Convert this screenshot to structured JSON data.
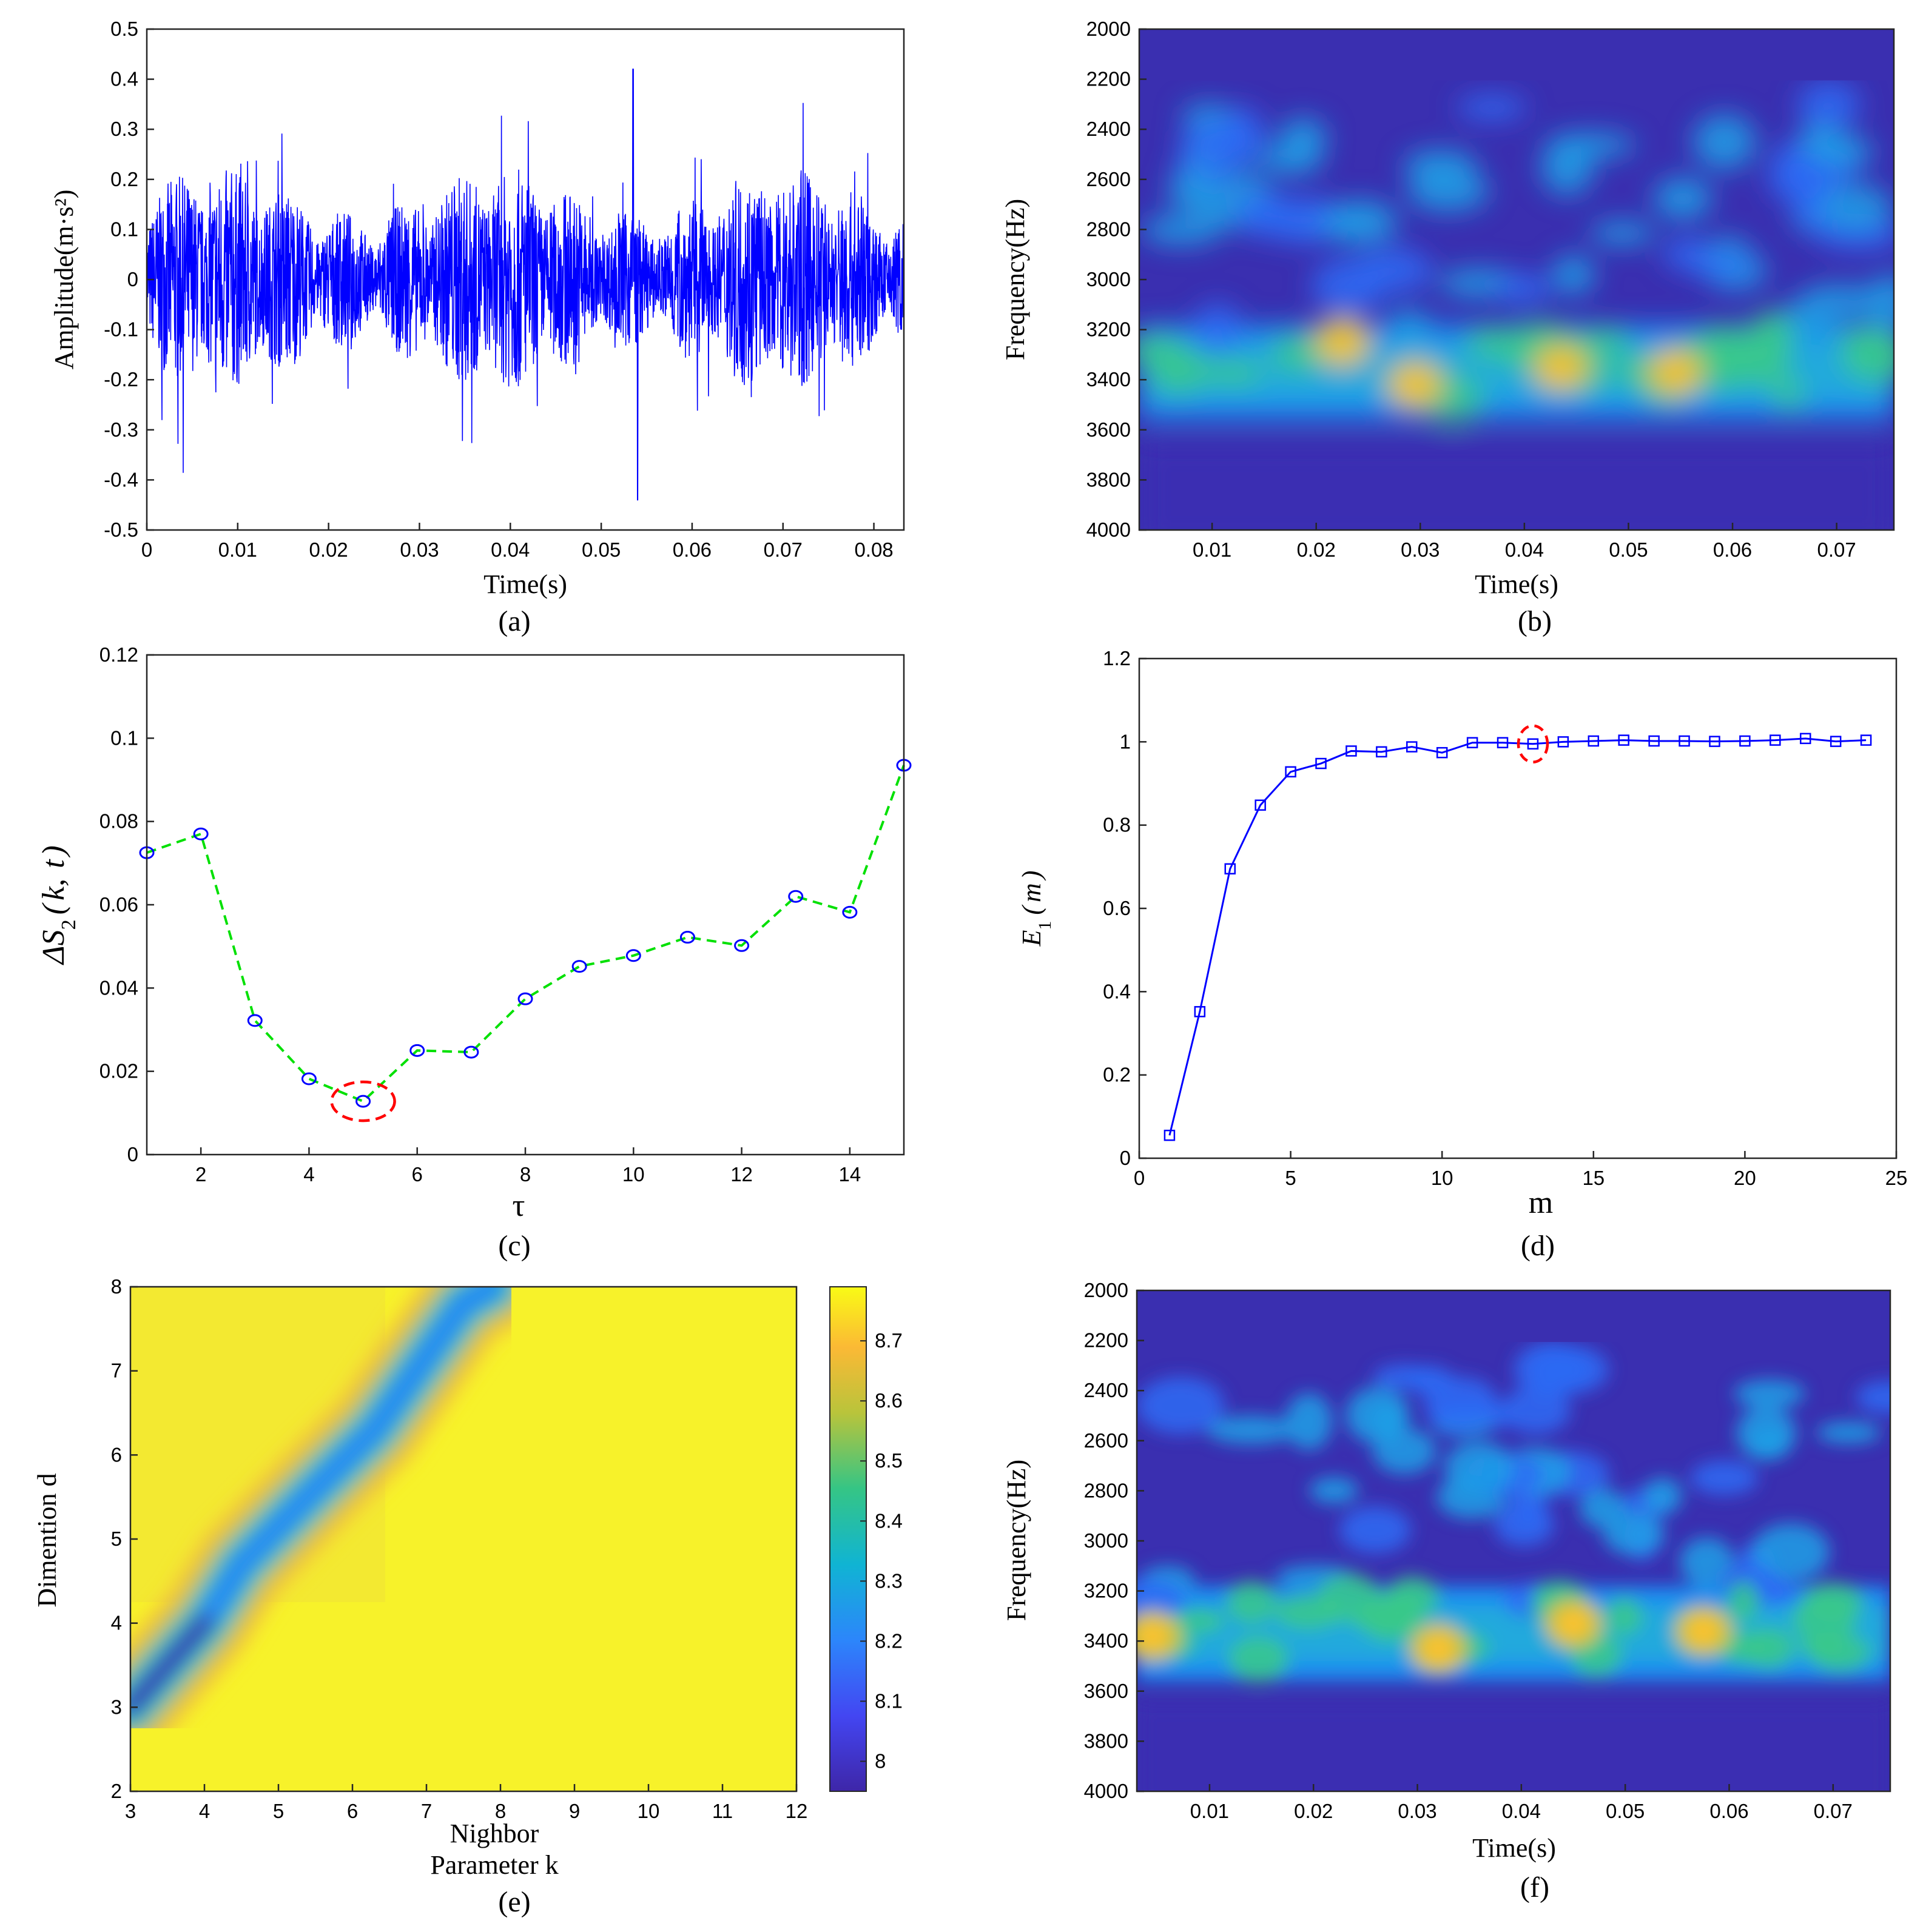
{
  "chart_data": [
    {
      "panel": "(a)",
      "type": "line",
      "xlabel": "Time(s)",
      "ylabel": "Amplitude(m·s²)",
      "xlim": [
        0,
        0.0833
      ],
      "ylim": [
        -0.5,
        0.5
      ],
      "xticks": [
        0,
        0.01,
        0.02,
        0.03,
        0.04,
        0.05,
        0.06,
        0.07,
        0.08
      ],
      "yticks": [
        -0.5,
        -0.4,
        -0.3,
        -0.2,
        -0.1,
        0,
        0.1,
        0.2,
        0.3,
        0.4,
        0.5
      ],
      "peaks": {
        "max": 0.42,
        "max_at": 0.0535,
        "min": -0.44,
        "min_at": 0.054
      },
      "color": "#0000ff"
    },
    {
      "panel": "(b)",
      "type": "heatmap",
      "xlabel": "Time(s)",
      "ylabel": "Frequency(Hz)",
      "xlim": [
        0.003,
        0.0755
      ],
      "ylim": [
        2000,
        4000
      ],
      "xticks": [
        0.01,
        0.02,
        0.03,
        0.04,
        0.05,
        0.06,
        0.07
      ],
      "yticks": [
        2000,
        2200,
        2400,
        2600,
        2800,
        3000,
        3200,
        3400,
        3600,
        3800,
        4000
      ],
      "band_center_hz": 3350,
      "hotspots": [
        {
          "t": 0.0295,
          "f": 3420
        },
        {
          "t": 0.0435,
          "f": 3350
        },
        {
          "t": 0.0545,
          "f": 3370
        },
        {
          "t": 0.0225,
          "f": 3250
        }
      ]
    },
    {
      "panel": "(c)",
      "type": "line",
      "xlabel": "τ",
      "ylabel": "ΔS₂(k,t)",
      "xlim": [
        1,
        15
      ],
      "ylim": [
        0,
        0.12
      ],
      "xticks": [
        2,
        4,
        6,
        8,
        10,
        12,
        14
      ],
      "yticks": [
        0,
        0.02,
        0.04,
        0.06,
        0.08,
        0.1,
        0.12
      ],
      "x": [
        1,
        2,
        3,
        4,
        5,
        6,
        7,
        8,
        9,
        10,
        11,
        12,
        13,
        14,
        15
      ],
      "y": [
        0.0725,
        0.077,
        0.0322,
        0.0182,
        0.0128,
        0.025,
        0.0246,
        0.0374,
        0.0452,
        0.0478,
        0.0522,
        0.0502,
        0.062,
        0.0582,
        0.0935
      ],
      "marked_x": 5,
      "line_color": "#00e000",
      "marker_color": "#0000ff",
      "mark_color": "#ff0000"
    },
    {
      "panel": "(d)",
      "type": "line",
      "xlabel": "m",
      "ylabel": "E₁(m)",
      "xlim": [
        0,
        25
      ],
      "ylim": [
        0,
        1.2
      ],
      "xticks": [
        0,
        5,
        10,
        15,
        20,
        25
      ],
      "yticks": [
        0,
        0.2,
        0.4,
        0.6,
        0.8,
        1,
        1.2
      ],
      "x": [
        1,
        2,
        3,
        4,
        5,
        6,
        7,
        8,
        9,
        10,
        11,
        12,
        13,
        14,
        15,
        16,
        17,
        18,
        19,
        20,
        21,
        22,
        23,
        24
      ],
      "y": [
        0.055,
        0.352,
        0.695,
        0.848,
        0.928,
        0.948,
        0.978,
        0.976,
        0.988,
        0.974,
        0.998,
        0.998,
        0.995,
        1.0,
        1.002,
        1.004,
        1.002,
        1.002,
        1.001,
        1.002,
        1.004,
        1.008,
        1.001,
        1.004
      ],
      "marked_x": 13,
      "line_color": "#0000ff",
      "mark_color": "#ff0000"
    },
    {
      "panel": "(e)",
      "type": "heatmap",
      "xlabel": "Nighbor Parameter k",
      "xlabel_lines": [
        "Nighbor",
        "Parameter k"
      ],
      "ylabel": "Dimention d",
      "xlim": [
        3,
        12
      ],
      "ylim": [
        2,
        8
      ],
      "xticks": [
        3,
        4,
        5,
        6,
        7,
        8,
        9,
        10,
        11,
        12
      ],
      "yticks": [
        2,
        3,
        4,
        5,
        6,
        7,
        8
      ],
      "colorbar": {
        "min": 7.95,
        "max": 8.79,
        "ticks": [
          8,
          8.1,
          8.2,
          8.3,
          8.4,
          8.5,
          8.6,
          8.7
        ]
      },
      "valley_path": [
        [
          3.0,
          3.0
        ],
        [
          4.0,
          4.0
        ],
        [
          4.5,
          4.7
        ],
        [
          5.5,
          5.6
        ],
        [
          6.3,
          6.3
        ],
        [
          7.5,
          7.8
        ],
        [
          7.9,
          8.0
        ]
      ],
      "minimum": {
        "k": 3.5,
        "d": 3.5,
        "value": 7.95
      }
    },
    {
      "panel": "(f)",
      "type": "heatmap",
      "xlabel": "Time(s)",
      "ylabel": "Frequency(Hz)",
      "xlim": [
        0.003,
        0.0755
      ],
      "ylim": [
        2000,
        4000
      ],
      "xticks": [
        0.01,
        0.02,
        0.03,
        0.04,
        0.05,
        0.06,
        0.07
      ],
      "yticks": [
        2000,
        2200,
        2400,
        2600,
        2800,
        3000,
        3200,
        3400,
        3600,
        3800,
        4000
      ],
      "band_center_hz": 3350,
      "hotspots": [
        {
          "t": 0.032,
          "f": 3430
        },
        {
          "t": 0.045,
          "f": 3330
        },
        {
          "t": 0.0575,
          "f": 3360
        },
        {
          "t": 0.0045,
          "f": 3380
        }
      ]
    }
  ],
  "panel_labels": [
    "(a)",
    "(b)",
    "(c)",
    "(d)",
    "(e)",
    "(f)"
  ]
}
